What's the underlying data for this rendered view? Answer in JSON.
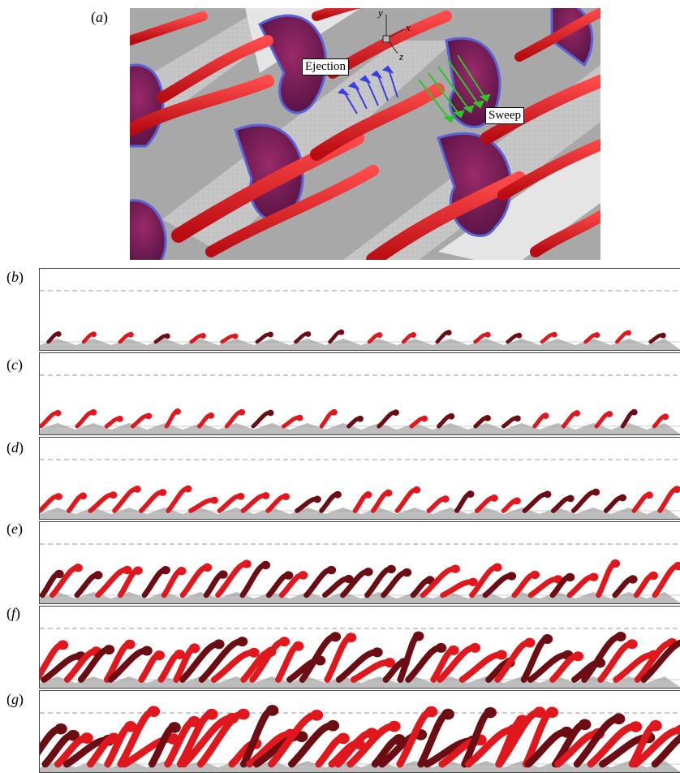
{
  "panels": {
    "a": {
      "label": "a",
      "callouts": {
        "ejection": "Ejection",
        "sweep": "Sweep"
      },
      "axes": {
        "x": "x",
        "y": "y",
        "z": "z"
      }
    },
    "b": {
      "label": "b"
    },
    "c": {
      "label": "c"
    },
    "d": {
      "label": "d"
    },
    "e": {
      "label": "e"
    },
    "f": {
      "label": "f"
    },
    "g": {
      "label": "g"
    }
  },
  "colors": {
    "structure_red": "#e0171c",
    "structure_dark": "#6b0d12",
    "vortex_purple": "#7a1d55",
    "vortex_blue_edge": "#5a62d8",
    "ejection_arrows": "#3a3fe0",
    "sweep_arrows": "#2fc42a",
    "wall_gray": "#bdbdbd",
    "dashed_line": "#9a9a9a"
  },
  "strip_activity": {
    "b": 0.12,
    "c": 0.22,
    "d": 0.35,
    "e": 0.55,
    "f": 0.75,
    "g": 0.95
  }
}
